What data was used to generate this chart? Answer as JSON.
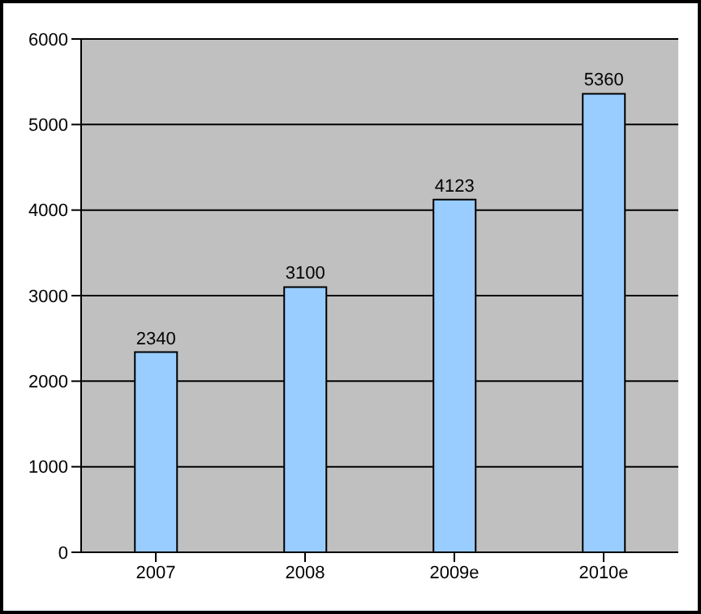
{
  "chart_data": {
    "type": "bar",
    "categories": [
      "2007",
      "2008",
      "2009e",
      "2010e"
    ],
    "values": [
      2340,
      3100,
      4123,
      5360
    ],
    "color": "#99ccff",
    "ylim": [
      0,
      6000
    ],
    "yticks": [
      0,
      1000,
      2000,
      3000,
      4000,
      5000,
      6000
    ],
    "grid": "y",
    "data_labels": true
  }
}
